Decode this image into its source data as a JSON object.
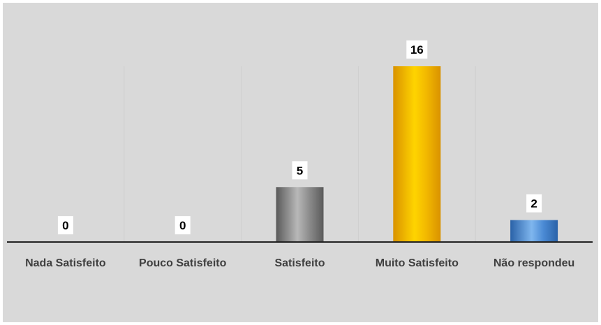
{
  "chart_data": {
    "type": "bar",
    "categories": [
      "Nada Satisfeito",
      "Pouco Satisfeito",
      "Satisfeito",
      "Muito Satisfeito",
      "Não respondeu"
    ],
    "values": [
      0,
      0,
      5,
      16,
      2
    ],
    "data_labels": [
      "0",
      "0",
      "5",
      "16",
      "2"
    ],
    "title": "",
    "xlabel": "",
    "ylabel": "",
    "ylim": [
      0,
      16
    ],
    "grid": false,
    "legend": "none",
    "bar_colors": [
      {
        "light": "#f5d000",
        "base": "#e2a800",
        "dark": "#c98a00"
      },
      {
        "light": "#9a9a9a",
        "base": "#808080",
        "dark": "#5c5c5c"
      },
      {
        "light": "#b8b8b8",
        "base": "#8c8c8c",
        "dark": "#5a5a5a"
      },
      {
        "light": "#ffd400",
        "base": "#f2b800",
        "dark": "#d99200"
      },
      {
        "light": "#7fb6ee",
        "base": "#4a8ad4",
        "dark": "#2a62a8"
      }
    ],
    "background_color": "#d9d9d9",
    "divider_color": "#cfcfcf"
  }
}
